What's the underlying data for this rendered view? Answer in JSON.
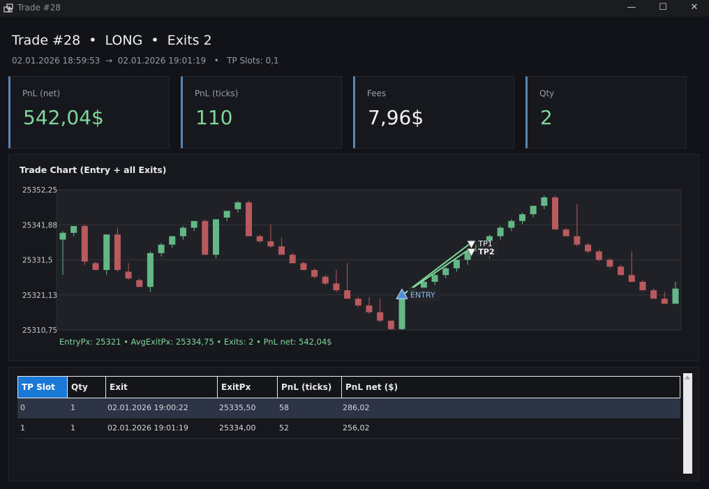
{
  "window": {
    "title": "Trade #28",
    "minimize_glyph": "—",
    "maximize_glyph": "☐",
    "close_glyph": "✕"
  },
  "header": {
    "title": "Trade #28  •  LONG  •  Exits 2",
    "subtitle": "02.01.2026 18:59:53  →  02.01.2026 19:01:19   •   TP Slots: 0,1"
  },
  "cards": [
    {
      "label": "PnL (net)",
      "value": "542,04$",
      "tone": "green"
    },
    {
      "label": "PnL (ticks)",
      "value": "110",
      "tone": "green"
    },
    {
      "label": "Fees",
      "value": "7,96$",
      "tone": "white"
    },
    {
      "label": "Qty",
      "value": "2",
      "tone": "green"
    }
  ],
  "colors": {
    "accent": "#5b86b8",
    "positive": "#7fd79b",
    "bull_candle": "#63b887",
    "bear_candle": "#b85a5e",
    "entry_marker": "#4f8fd6",
    "selected_header": "#1a78d6"
  },
  "chart_panel": {
    "title": "Trade Chart (Entry + all Exits)",
    "summary": "EntryPx: 25321  •  AvgExitPx: 25334,75  •  Exits: 2  •  PnL net: 542,04$"
  },
  "chart_data": {
    "type": "candlestick",
    "y_ticks": [
      "25352,25",
      "25341,88",
      "25331,5",
      "25321,13",
      "25310,75"
    ],
    "ylim": [
      25310.75,
      25352.25
    ],
    "grid": true,
    "candles": [
      {
        "o": 25337.5,
        "h": 25340.0,
        "l": 25327.0,
        "c": 25339.5
      },
      {
        "o": 25339.5,
        "h": 25341.5,
        "l": 25338.5,
        "c": 25341.5
      },
      {
        "o": 25341.5,
        "h": 25342.0,
        "l": 25330.0,
        "c": 25331.0
      },
      {
        "o": 25330.5,
        "h": 25331.0,
        "l": 25328.5,
        "c": 25328.5
      },
      {
        "o": 25328.5,
        "h": 25339.0,
        "l": 25327.0,
        "c": 25339.0
      },
      {
        "o": 25339.0,
        "h": 25341.0,
        "l": 25328.0,
        "c": 25328.5
      },
      {
        "o": 25328.0,
        "h": 25330.5,
        "l": 25325.5,
        "c": 25326.0
      },
      {
        "o": 25325.5,
        "h": 25326.0,
        "l": 25323.5,
        "c": 25323.5
      },
      {
        "o": 25323.5,
        "h": 25334.0,
        "l": 25322.0,
        "c": 25333.5
      },
      {
        "o": 25333.5,
        "h": 25336.5,
        "l": 25332.5,
        "c": 25336.0
      },
      {
        "o": 25336.0,
        "h": 25338.5,
        "l": 25335.0,
        "c": 25338.5
      },
      {
        "o": 25338.5,
        "h": 25341.5,
        "l": 25337.5,
        "c": 25341.0
      },
      {
        "o": 25341.0,
        "h": 25343.0,
        "l": 25340.0,
        "c": 25343.0
      },
      {
        "o": 25343.0,
        "h": 25343.5,
        "l": 25333.0,
        "c": 25333.0
      },
      {
        "o": 25333.0,
        "h": 25343.5,
        "l": 25332.0,
        "c": 25343.5
      },
      {
        "o": 25344.0,
        "h": 25346.0,
        "l": 25343.0,
        "c": 25346.0
      },
      {
        "o": 25346.5,
        "h": 25349.0,
        "l": 25345.5,
        "c": 25348.5
      },
      {
        "o": 25348.5,
        "h": 25349.0,
        "l": 25338.5,
        "c": 25338.5
      },
      {
        "o": 25338.5,
        "h": 25339.0,
        "l": 25336.5,
        "c": 25337.0
      },
      {
        "o": 25337.0,
        "h": 25342.0,
        "l": 25335.0,
        "c": 25335.5
      },
      {
        "o": 25335.5,
        "h": 25338.0,
        "l": 25333.0,
        "c": 25333.0
      },
      {
        "o": 25333.0,
        "h": 25333.5,
        "l": 25330.5,
        "c": 25330.5
      },
      {
        "o": 25330.5,
        "h": 25331.0,
        "l": 25328.5,
        "c": 25328.5
      },
      {
        "o": 25328.5,
        "h": 25329.0,
        "l": 25326.0,
        "c": 25326.5
      },
      {
        "o": 25326.5,
        "h": 25327.0,
        "l": 25324.0,
        "c": 25324.5
      },
      {
        "o": 25324.5,
        "h": 25328.5,
        "l": 25322.0,
        "c": 25322.5
      },
      {
        "o": 25322.5,
        "h": 25330.5,
        "l": 25320.0,
        "c": 25320.0
      },
      {
        "o": 25320.0,
        "h": 25320.5,
        "l": 25317.5,
        "c": 25318.0
      },
      {
        "o": 25318.0,
        "h": 25320.5,
        "l": 25315.5,
        "c": 25316.0
      },
      {
        "o": 25316.0,
        "h": 25320.0,
        "l": 25313.0,
        "c": 25313.5
      },
      {
        "o": 25313.5,
        "h": 25313.5,
        "l": 25310.75,
        "c": 25311.0
      },
      {
        "o": 25311.0,
        "h": 25321.0,
        "l": 25310.75,
        "c": 25321.0
      },
      {
        "o": 25321.0,
        "h": 25323.5,
        "l": 25320.0,
        "c": 25323.0
      },
      {
        "o": 25323.0,
        "h": 25325.5,
        "l": 25322.0,
        "c": 25325.0
      },
      {
        "o": 25325.0,
        "h": 25327.5,
        "l": 25324.0,
        "c": 25327.0
      },
      {
        "o": 25327.0,
        "h": 25329.5,
        "l": 25326.0,
        "c": 25329.0
      },
      {
        "o": 25329.0,
        "h": 25331.5,
        "l": 25328.0,
        "c": 25331.5
      },
      {
        "o": 25331.5,
        "h": 25334.5,
        "l": 25330.0,
        "c": 25334.0
      },
      {
        "o": 25334.0,
        "h": 25336.5,
        "l": 25333.0,
        "c": 25336.0
      },
      {
        "o": 25336.0,
        "h": 25339.0,
        "l": 25332.0,
        "c": 25338.5
      },
      {
        "o": 25338.5,
        "h": 25341.5,
        "l": 25337.5,
        "c": 25341.0
      },
      {
        "o": 25341.0,
        "h": 25343.5,
        "l": 25340.0,
        "c": 25343.0
      },
      {
        "o": 25343.0,
        "h": 25345.5,
        "l": 25342.0,
        "c": 25345.0
      },
      {
        "o": 25345.0,
        "h": 25347.5,
        "l": 25344.0,
        "c": 25347.5
      },
      {
        "o": 25347.5,
        "h": 25350.5,
        "l": 25346.5,
        "c": 25350.0
      },
      {
        "o": 25350.0,
        "h": 25350.5,
        "l": 25340.5,
        "c": 25340.5
      },
      {
        "o": 25340.5,
        "h": 25341.0,
        "l": 25338.5,
        "c": 25338.5
      },
      {
        "o": 25338.5,
        "h": 25348.0,
        "l": 25335.5,
        "c": 25336.0
      },
      {
        "o": 25336.0,
        "h": 25336.5,
        "l": 25333.5,
        "c": 25334.0
      },
      {
        "o": 25334.0,
        "h": 25334.5,
        "l": 25331.0,
        "c": 25331.5
      },
      {
        "o": 25331.5,
        "h": 25332.0,
        "l": 25329.0,
        "c": 25329.5
      },
      {
        "o": 25329.5,
        "h": 25330.0,
        "l": 25327.0,
        "c": 25327.0
      },
      {
        "o": 25327.0,
        "h": 25334.0,
        "l": 25325.0,
        "c": 25325.0
      },
      {
        "o": 25325.0,
        "h": 25325.5,
        "l": 25322.5,
        "c": 25322.5
      },
      {
        "o": 25322.5,
        "h": 25323.0,
        "l": 25320.0,
        "c": 25320.0
      },
      {
        "o": 25320.0,
        "h": 25322.0,
        "l": 25318.5,
        "c": 25318.5
      },
      {
        "o": 25318.5,
        "h": 25325.0,
        "l": 25318.5,
        "c": 25323.0
      }
    ],
    "trades": [
      {
        "label": "ENTRY",
        "index": 31,
        "price": 25321.0
      },
      {
        "label": "TP1",
        "index": 36,
        "price": 25335.5
      },
      {
        "label": "TP2",
        "index": 36,
        "price": 25334.0
      }
    ]
  },
  "table": {
    "columns": [
      "TP Slot",
      "Qty",
      "Exit",
      "ExitPx",
      "PnL (ticks)",
      "PnL net ($)"
    ],
    "rows": [
      [
        "0",
        "1",
        "02.01.2026 19:00:22",
        "25335,50",
        "58",
        "286,02"
      ],
      [
        "1",
        "1",
        "02.01.2026 19:01:19",
        "25334,00",
        "52",
        "256,02"
      ]
    ],
    "selected_row": 0
  }
}
